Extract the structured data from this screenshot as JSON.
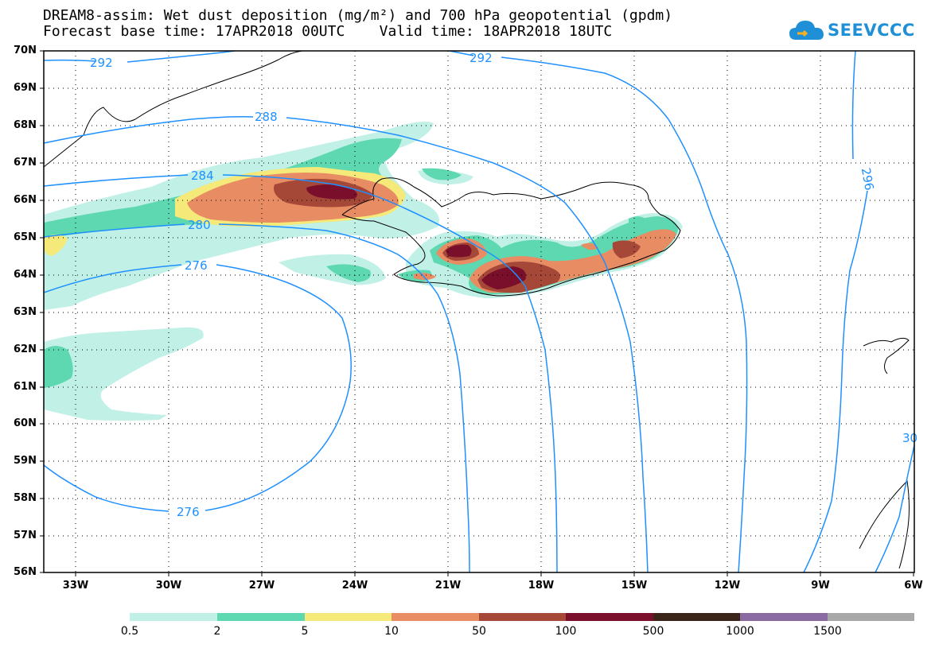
{
  "title": {
    "line1": "DREAM8-assim: Wet dust deposition (mg/m²) and 700 hPa geopotential (gpdm)",
    "line2": "Forecast base time: 17APR2018 00UTC    Valid time: 18APR2018 18UTC"
  },
  "logo": {
    "text": "SEEVCCC",
    "icon": "cloud-icon"
  },
  "axes": {
    "lat_labels": [
      "70N",
      "69N",
      "68N",
      "67N",
      "66N",
      "65N",
      "64N",
      "63N",
      "62N",
      "61N",
      "60N",
      "59N",
      "58N",
      "57N",
      "56N"
    ],
    "lon_labels": [
      "33W",
      "30W",
      "27W",
      "24W",
      "21W",
      "18W",
      "15W",
      "12W",
      "9W",
      "6W"
    ]
  },
  "colorbar": {
    "labels": [
      "0.5",
      "2",
      "5",
      "10",
      "50",
      "100",
      "500",
      "1000",
      "1500"
    ],
    "colors": [
      "#c0f0e6",
      "#5ed8b0",
      "#f5e97a",
      "#e88c64",
      "#a54838",
      "#7a0f2c",
      "#3b2418",
      "#8a6aa0",
      "#a8a8a8"
    ]
  },
  "contours": {
    "color": "#1e90ff",
    "labels": [
      "292",
      "292",
      "288",
      "284",
      "280",
      "276",
      "276",
      "296",
      "30"
    ]
  }
}
